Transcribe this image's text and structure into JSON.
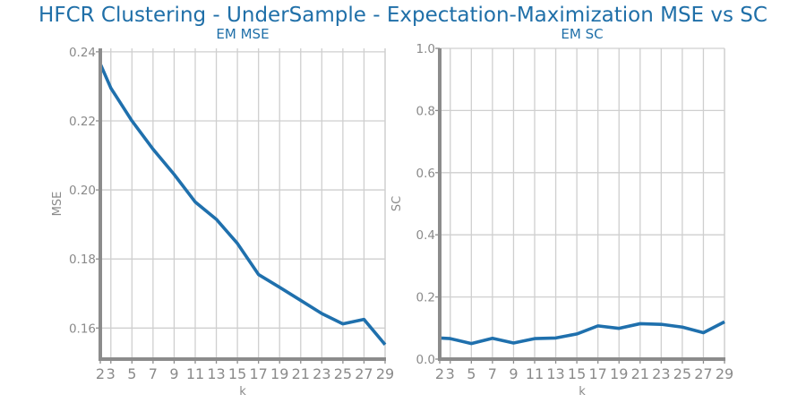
{
  "title": "HFCR Clustering - UnderSample - Expectation-Maximization MSE vs SC",
  "colors": {
    "line": "#1f70ad",
    "title": "#1f6fa8",
    "grid": "#cfcfcf",
    "axis": "#8c8c8c",
    "tick_text": "#8a8a8a"
  },
  "chart_data": [
    {
      "type": "line",
      "title": "EM MSE",
      "xlabel": "k",
      "ylabel": "MSE",
      "x": [
        2,
        3,
        5,
        7,
        9,
        11,
        13,
        15,
        17,
        19,
        21,
        23,
        25,
        27,
        29
      ],
      "xticks": [
        "2",
        "3",
        "5",
        "7",
        "9",
        "11",
        "13",
        "15",
        "17",
        "19",
        "21",
        "23",
        "25",
        "27",
        "29"
      ],
      "xlim": [
        2,
        29
      ],
      "ylim": [
        0.151,
        0.241
      ],
      "yticks": [
        0.16,
        0.18,
        0.2,
        0.22,
        0.24
      ],
      "ytick_labels": [
        "0.16",
        "0.18",
        "0.20",
        "0.22",
        "0.24"
      ],
      "grid": true,
      "series": [
        {
          "values": [
            0.2365,
            0.2295,
            0.22,
            0.2118,
            0.2045,
            0.1965,
            0.1915,
            0.1845,
            0.1755,
            0.1718,
            0.168,
            0.1642,
            0.1612,
            0.1625,
            0.1552
          ]
        }
      ]
    },
    {
      "type": "line",
      "title": "EM SC",
      "xlabel": "k",
      "ylabel": "SC",
      "x": [
        2,
        3,
        5,
        7,
        9,
        11,
        13,
        15,
        17,
        19,
        21,
        23,
        25,
        27,
        29
      ],
      "xticks": [
        "2",
        "3",
        "5",
        "7",
        "9",
        "11",
        "13",
        "15",
        "17",
        "19",
        "21",
        "23",
        "25",
        "27",
        "29"
      ],
      "xlim": [
        2,
        29
      ],
      "ylim": [
        0,
        1
      ],
      "yticks": [
        0,
        0.2,
        0.4,
        0.6,
        0.8,
        1.0
      ],
      "ytick_labels": [
        "0.0",
        "0.2",
        "0.4",
        "0.6",
        "0.8",
        "1.0"
      ],
      "grid": true,
      "series": [
        {
          "values": [
            0.068,
            0.066,
            0.05,
            0.067,
            0.052,
            0.066,
            0.068,
            0.081,
            0.107,
            0.099,
            0.114,
            0.112,
            0.103,
            0.085,
            0.12
          ]
        }
      ]
    }
  ]
}
